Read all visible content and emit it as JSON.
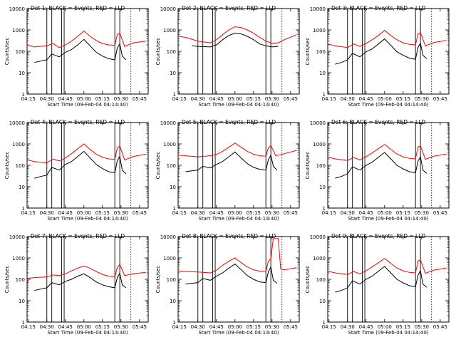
{
  "chart_data": [
    {
      "type": "line",
      "title": "Det 1: BLACK = Events, RED = LLD",
      "xlabel": "Start Time (09-Feb-04 04:14:40)",
      "ylabel": "Counts/sec",
      "x_ticks": [
        "04:15",
        "04:30",
        "04:45",
        "05:00",
        "05:15",
        "05:30",
        "05:45"
      ],
      "y_ticks": [
        "1",
        "10",
        "100",
        "1000",
        "10000"
      ],
      "yscale": "log",
      "ylim": [
        1,
        10000
      ],
      "series": [
        {
          "color": "#ff0000",
          "x": [
            "04:14",
            "04:20",
            "04:30",
            "04:35",
            "04:40",
            "04:45",
            "04:50",
            "04:55",
            "05:00",
            "05:05",
            "05:10",
            "05:15",
            "05:20",
            "05:25",
            "05:27",
            "05:29",
            "05:33",
            "05:40",
            "05:50"
          ],
          "values": [
            200,
            160,
            180,
            230,
            150,
            200,
            300,
            500,
            900,
            500,
            320,
            230,
            200,
            190,
            600,
            700,
            170,
            250,
            300
          ]
        },
        {
          "color": "#000000",
          "x": [
            "04:20",
            "04:25",
            "04:30",
            "04:34",
            "04:40",
            "04:45",
            "04:50",
            "04:55",
            "05:00",
            "05:05",
            "05:10",
            "05:15",
            "05:20",
            "05:25",
            "05:27",
            "05:29",
            "05:31",
            "05:34"
          ],
          "values": [
            30,
            35,
            40,
            75,
            55,
            90,
            120,
            200,
            360,
            180,
            90,
            60,
            45,
            40,
            140,
            220,
            60,
            40
          ]
        }
      ]
    },
    {
      "type": "line",
      "title": "Det 2: BLACK = Events, RED = LLD",
      "xlabel": "Start Time (09-Feb-04 04:14:40)",
      "ylabel": "Counts/sec",
      "x_ticks": [
        "04:15",
        "04:30",
        "04:45",
        "05:00",
        "05:15",
        "05:30",
        "05:45"
      ],
      "y_ticks": [
        "1",
        "10",
        "100",
        "1000",
        "10000"
      ],
      "yscale": "log",
      "ylim": [
        1,
        10000
      ],
      "series": [
        {
          "color": "#ff0000",
          "x": [
            "04:14",
            "04:20",
            "04:30",
            "04:40",
            "04:45",
            "04:50",
            "04:55",
            "05:00",
            "05:05",
            "05:10",
            "05:15",
            "05:20",
            "05:25",
            "05:30",
            "05:35",
            "05:40",
            "05:50"
          ],
          "values": [
            500,
            450,
            300,
            250,
            350,
            600,
            1000,
            1400,
            1300,
            1000,
            700,
            450,
            300,
            240,
            250,
            350,
            600
          ]
        },
        {
          "color": "#000000",
          "x": [
            "04:25",
            "04:30",
            "04:40",
            "04:45",
            "04:50",
            "04:55",
            "05:00",
            "05:05",
            "05:10",
            "05:15",
            "05:20",
            "05:25",
            "05:30",
            "05:35"
          ],
          "values": [
            180,
            170,
            160,
            200,
            350,
            550,
            700,
            650,
            500,
            350,
            220,
            180,
            160,
            170
          ]
        }
      ]
    },
    {
      "type": "line",
      "title": "Det 3: BLACK = Events, RED = LLD",
      "xlabel": "Start Time (09-Feb-04 04:14:40)",
      "ylabel": "Counts/sec",
      "x_ticks": [
        "04:15",
        "04:30",
        "04:45",
        "05:00",
        "05:15",
        "05:30",
        "05:45"
      ],
      "y_ticks": [
        "1",
        "10",
        "100",
        "1000",
        "10000"
      ],
      "yscale": "log",
      "ylim": [
        1,
        10000
      ],
      "series": [
        {
          "color": "#ff0000",
          "x": [
            "04:14",
            "04:20",
            "04:30",
            "04:35",
            "04:40",
            "04:45",
            "04:50",
            "04:55",
            "05:00",
            "05:05",
            "05:10",
            "05:15",
            "05:20",
            "05:25",
            "05:27",
            "05:29",
            "05:33",
            "05:40",
            "05:50"
          ],
          "values": [
            220,
            180,
            150,
            220,
            170,
            230,
            350,
            550,
            950,
            550,
            350,
            250,
            210,
            200,
            650,
            750,
            180,
            260,
            320
          ]
        },
        {
          "color": "#000000",
          "x": [
            "04:20",
            "04:25",
            "04:30",
            "04:34",
            "04:40",
            "04:45",
            "04:50",
            "04:55",
            "05:00",
            "05:05",
            "05:10",
            "05:15",
            "05:20",
            "05:25",
            "05:27",
            "05:29",
            "05:31",
            "05:34"
          ],
          "values": [
            25,
            30,
            40,
            80,
            55,
            95,
            130,
            220,
            380,
            190,
            95,
            65,
            48,
            42,
            150,
            240,
            65,
            45
          ]
        }
      ]
    },
    {
      "type": "line",
      "title": "Det 4: BLACK = Events, RED = LLD",
      "xlabel": "Start Time (09-Feb-04 04:14:40)",
      "ylabel": "Counts/sec",
      "x_ticks": [
        "04:15",
        "04:30",
        "04:45",
        "05:00",
        "05:15",
        "05:30",
        "05:45"
      ],
      "y_ticks": [
        "1",
        "10",
        "100",
        "1000",
        "10000"
      ],
      "yscale": "log",
      "ylim": [
        1,
        10000
      ],
      "series": [
        {
          "color": "#ff0000",
          "x": [
            "04:14",
            "04:20",
            "04:30",
            "04:35",
            "04:40",
            "04:45",
            "04:50",
            "04:55",
            "05:00",
            "05:05",
            "05:10",
            "05:15",
            "05:20",
            "05:25",
            "05:27",
            "05:29",
            "05:33",
            "05:40",
            "05:50"
          ],
          "values": [
            180,
            150,
            130,
            200,
            160,
            220,
            350,
            600,
            1000,
            550,
            330,
            240,
            200,
            190,
            650,
            800,
            180,
            260,
            330
          ]
        },
        {
          "color": "#000000",
          "x": [
            "04:20",
            "04:25",
            "04:30",
            "04:34",
            "04:40",
            "04:45",
            "04:50",
            "04:55",
            "05:00",
            "05:05",
            "05:10",
            "05:15",
            "05:20",
            "05:25",
            "05:27",
            "05:29",
            "05:31",
            "05:34"
          ],
          "values": [
            25,
            30,
            35,
            80,
            60,
            110,
            150,
            260,
            450,
            220,
            110,
            70,
            50,
            45,
            160,
            260,
            60,
            40
          ]
        }
      ]
    },
    {
      "type": "line",
      "title": "Det 5: BLACK = Events, RED = LLD",
      "xlabel": "Start Time (09-Feb-04 04:14:40)",
      "ylabel": "Counts/sec",
      "x_ticks": [
        "04:15",
        "04:30",
        "04:45",
        "05:00",
        "05:15",
        "05:30",
        "05:45"
      ],
      "y_ticks": [
        "1",
        "10",
        "100",
        "1000",
        "10000"
      ],
      "yscale": "log",
      "ylim": [
        1,
        10000
      ],
      "series": [
        {
          "color": "#ff0000",
          "x": [
            "04:14",
            "04:20",
            "04:30",
            "04:40",
            "04:45",
            "04:50",
            "04:55",
            "05:00",
            "05:05",
            "05:10",
            "05:15",
            "05:20",
            "05:25",
            "05:27",
            "05:29",
            "05:33",
            "05:40",
            "05:50"
          ],
          "values": [
            300,
            280,
            250,
            280,
            320,
            450,
            700,
            1100,
            700,
            450,
            330,
            280,
            270,
            650,
            850,
            280,
            350,
            500
          ]
        },
        {
          "color": "#000000",
          "x": [
            "04:20",
            "04:25",
            "04:30",
            "04:34",
            "04:40",
            "04:45",
            "04:50",
            "04:55",
            "05:00",
            "05:05",
            "05:10",
            "05:15",
            "05:20",
            "05:25",
            "05:27",
            "05:29",
            "05:31",
            "05:34"
          ],
          "values": [
            50,
            55,
            60,
            90,
            75,
            110,
            150,
            250,
            420,
            220,
            120,
            80,
            65,
            60,
            180,
            300,
            90,
            60
          ]
        }
      ]
    },
    {
      "type": "line",
      "title": "Det 6: BLACK = Events, RED = LLD",
      "xlabel": "Start Time (09-Feb-04 04:14:40)",
      "ylabel": "Counts/sec",
      "x_ticks": [
        "04:15",
        "04:30",
        "04:45",
        "05:00",
        "05:15",
        "05:30",
        "05:45"
      ],
      "y_ticks": [
        "1",
        "10",
        "100",
        "1000",
        "10000"
      ],
      "yscale": "log",
      "ylim": [
        1,
        10000
      ],
      "series": [
        {
          "color": "#ff0000",
          "x": [
            "04:14",
            "04:20",
            "04:30",
            "04:35",
            "04:40",
            "04:45",
            "04:50",
            "04:55",
            "05:00",
            "05:05",
            "05:10",
            "05:15",
            "05:20",
            "05:25",
            "05:27",
            "05:29",
            "05:33",
            "05:40",
            "05:50"
          ],
          "values": [
            240,
            200,
            170,
            230,
            180,
            250,
            380,
            600,
            950,
            560,
            340,
            250,
            210,
            200,
            700,
            820,
            190,
            270,
            340
          ]
        },
        {
          "color": "#000000",
          "x": [
            "04:20",
            "04:25",
            "04:30",
            "04:34",
            "04:40",
            "04:45",
            "04:50",
            "04:55",
            "05:00",
            "05:05",
            "05:10",
            "05:15",
            "05:20",
            "05:25",
            "05:27",
            "05:29",
            "05:31",
            "05:34"
          ],
          "values": [
            25,
            30,
            40,
            85,
            60,
            100,
            140,
            240,
            400,
            200,
            100,
            68,
            50,
            45,
            155,
            250,
            60,
            42
          ]
        }
      ]
    },
    {
      "type": "line",
      "title": "Det 7: BLACK = Events, RED = LLD",
      "xlabel": "Start Time (09-Feb-04 04:14:40)",
      "ylabel": "Counts/sec",
      "x_ticks": [
        "04:15",
        "04:30",
        "04:45",
        "05:00",
        "05:15",
        "05:30",
        "05:45"
      ],
      "y_ticks": [
        "1",
        "10",
        "100",
        "1000",
        "10000"
      ],
      "yscale": "log",
      "ylim": [
        1,
        10000
      ],
      "series": [
        {
          "color": "#ff0000",
          "x": [
            "04:14",
            "04:20",
            "04:30",
            "04:35",
            "04:40",
            "04:45",
            "04:50",
            "04:55",
            "05:00",
            "05:05",
            "05:10",
            "05:15",
            "05:20",
            "05:25",
            "05:27",
            "05:29",
            "05:33",
            "05:40",
            "05:50"
          ],
          "values": [
            110,
            120,
            130,
            160,
            150,
            180,
            250,
            330,
            420,
            330,
            230,
            170,
            140,
            130,
            350,
            500,
            150,
            180,
            210
          ]
        },
        {
          "color": "#000000",
          "x": [
            "04:20",
            "04:25",
            "04:30",
            "04:34",
            "04:40",
            "04:45",
            "04:50",
            "04:55",
            "05:00",
            "05:05",
            "05:10",
            "05:15",
            "05:20",
            "05:25",
            "05:27",
            "05:29",
            "05:31",
            "05:34"
          ],
          "values": [
            30,
            35,
            40,
            70,
            55,
            80,
            100,
            140,
            180,
            120,
            75,
            55,
            45,
            40,
            120,
            190,
            55,
            40
          ]
        }
      ]
    },
    {
      "type": "line",
      "title": "Det 8: BLACK = Events, RED = LLD",
      "xlabel": "Start Time (09-Feb-04 04:14:40)",
      "ylabel": "Counts/sec",
      "x_ticks": [
        "04:15",
        "04:30",
        "04:45",
        "05:00",
        "05:15",
        "05:30",
        "05:45"
      ],
      "y_ticks": [
        "1",
        "10",
        "100",
        "1000",
        "10000"
      ],
      "yscale": "log",
      "ylim": [
        1,
        10000
      ],
      "series": [
        {
          "color": "#ff0000",
          "x": [
            "04:14",
            "04:20",
            "04:30",
            "04:40",
            "04:45",
            "04:50",
            "04:55",
            "05:00",
            "05:05",
            "05:10",
            "05:15",
            "05:20",
            "05:25",
            "05:27",
            "05:29",
            "05:31",
            "05:33",
            "05:35",
            "05:37",
            "05:40",
            "05:50"
          ],
          "values": [
            250,
            230,
            220,
            200,
            270,
            450,
            700,
            1000,
            600,
            380,
            280,
            240,
            230,
            700,
            900,
            8000,
            8000,
            8000,
            300,
            280,
            350
          ]
        },
        {
          "color": "#000000",
          "x": [
            "04:20",
            "04:25",
            "04:30",
            "04:34",
            "04:40",
            "04:45",
            "04:50",
            "04:55",
            "05:00",
            "05:05",
            "05:10",
            "05:15",
            "05:20",
            "05:25",
            "05:27",
            "05:29",
            "05:31",
            "05:34"
          ],
          "values": [
            60,
            65,
            70,
            110,
            90,
            140,
            200,
            330,
            520,
            280,
            150,
            100,
            75,
            70,
            220,
            380,
            90,
            65
          ]
        }
      ]
    },
    {
      "type": "line",
      "title": "Det 9: BLACK = Events, RED = LLD",
      "xlabel": "Start Time (09-Feb-04 04:14:40)",
      "ylabel": "Counts/sec",
      "x_ticks": [
        "04:15",
        "04:30",
        "04:45",
        "05:00",
        "05:15",
        "05:30",
        "05:45"
      ],
      "y_ticks": [
        "1",
        "10",
        "100",
        "1000",
        "10000"
      ],
      "yscale": "log",
      "ylim": [
        1,
        10000
      ],
      "series": [
        {
          "color": "#ff0000",
          "x": [
            "04:14",
            "04:20",
            "04:30",
            "04:35",
            "04:40",
            "04:45",
            "04:50",
            "04:55",
            "05:00",
            "05:05",
            "05:10",
            "05:15",
            "05:20",
            "05:25",
            "05:27",
            "05:29",
            "05:33",
            "05:40",
            "05:50"
          ],
          "values": [
            240,
            200,
            170,
            230,
            180,
            250,
            380,
            600,
            950,
            560,
            340,
            250,
            210,
            200,
            700,
            820,
            190,
            270,
            340
          ]
        },
        {
          "color": "#000000",
          "x": [
            "04:20",
            "04:25",
            "04:30",
            "04:34",
            "04:40",
            "04:45",
            "04:50",
            "04:55",
            "05:00",
            "05:05",
            "05:10",
            "05:15",
            "05:20",
            "05:25",
            "05:27",
            "05:29",
            "05:31",
            "05:34"
          ],
          "values": [
            25,
            30,
            40,
            85,
            60,
            100,
            140,
            240,
            400,
            200,
            100,
            68,
            50,
            45,
            155,
            250,
            60,
            42
          ]
        }
      ]
    }
  ]
}
